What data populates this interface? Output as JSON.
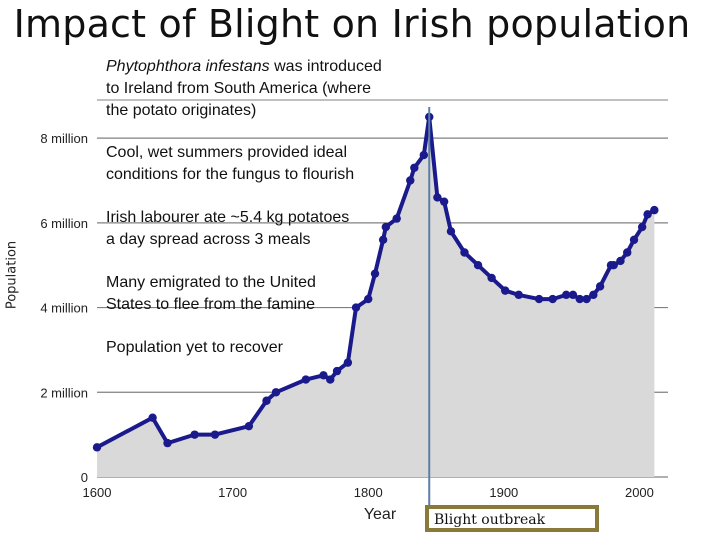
{
  "slide": {
    "title": "Impact of Blight on Irish population"
  },
  "notes": [
    {
      "italic": "Phytophthora infestans",
      "line1_rest": " was introduced",
      "line2": "to Ireland from South America (where",
      "line3": "the potato originates)"
    },
    {
      "line1": "Cool, wet summers provided ideal",
      "line2": "conditions for the fungus to flourish"
    },
    {
      "line1": "Irish labourer ate ~5.4 kg potatoes",
      "line2": "a day spread across 3 meals"
    },
    {
      "line1": "Many emigrated to the United",
      "line2": "States to flee from the famine"
    },
    {
      "line1": "Population yet to recover"
    }
  ],
  "legend": {
    "marker_label": "Blight outbreak"
  },
  "chart_data": {
    "type": "area",
    "xlabel": "Year",
    "ylabel": "Population",
    "xlim": [
      1600,
      2010
    ],
    "ylim": [
      0,
      8900000
    ],
    "x_ticks": [
      1600,
      1700,
      1800,
      1900,
      2000
    ],
    "x_tick_labels": [
      "1600",
      "1700",
      "1800",
      "1900",
      "2000"
    ],
    "y_ticks": [
      0,
      2000000,
      4000000,
      6000000,
      8000000
    ],
    "y_tick_labels": [
      "0",
      "2 million",
      "4 million",
      "6 million",
      "8 million"
    ],
    "grid": "horizontal",
    "marker_year": 1845,
    "series": [
      {
        "x": [
          1600,
          1641,
          1652,
          1672,
          1687,
          1712,
          1725,
          1732,
          1754,
          1767,
          1772,
          1777,
          1785,
          1791,
          1800,
          1805,
          1811,
          1813,
          1821,
          1831,
          1834,
          1841,
          1845,
          1851,
          1856,
          1861,
          1871,
          1881,
          1891,
          1901,
          1911,
          1926,
          1936,
          1946,
          1951,
          1956,
          1961,
          1966,
          1971,
          1979,
          1981,
          1986,
          1991,
          1996,
          2002,
          2006,
          2011
        ],
        "values": [
          700000,
          1400000,
          800000,
          1000000,
          1000000,
          1200000,
          1800000,
          2000000,
          2300000,
          2400000,
          2300000,
          2500000,
          2700000,
          4000000,
          4200000,
          4800000,
          5600000,
          5900000,
          6100000,
          7000000,
          7300000,
          7600000,
          8500000,
          6600000,
          6500000,
          5800000,
          5300000,
          5000000,
          4700000,
          4400000,
          4300000,
          4200000,
          4200000,
          4300000,
          4300000,
          4200000,
          4200000,
          4300000,
          4500000,
          5000000,
          5000000,
          5100000,
          5300000,
          5600000,
          5900000,
          6200000,
          6300000
        ]
      }
    ]
  },
  "colors": {
    "line": "#1a1a8c",
    "fill": "#d9d9d9",
    "marker": "#5b7fa6",
    "grid": "#808080",
    "legend_border": "#8a7a3a"
  }
}
